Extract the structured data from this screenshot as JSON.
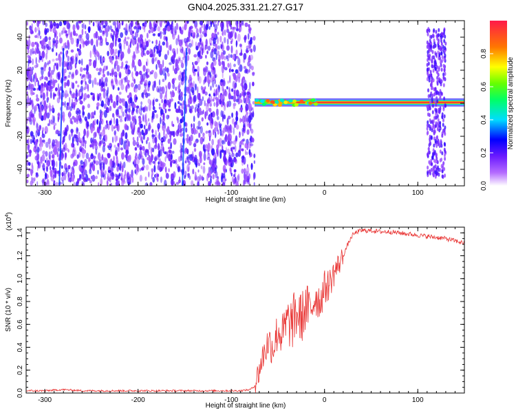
{
  "figure": {
    "title": "GN04.2025.331.21.27.G17"
  },
  "chart_data": [
    {
      "type": "heatmap",
      "title": "GN04.2025.331.21.27.G17",
      "xlabel": "Height of straight line (km)",
      "ylabel": "Frequency (Hz)",
      "xlim": [
        -320,
        150
      ],
      "ylim": [
        -50,
        50
      ],
      "x_ticks": [
        "-300",
        "-200",
        "-100",
        "0",
        "100"
      ],
      "y_ticks": [
        "40",
        "20",
        "0",
        "-20",
        "-40"
      ],
      "colorbar": {
        "label": "Normalized spectral amplitude",
        "range": [
          0.0,
          1.0
        ],
        "ticks": [
          "0.0",
          "0.2",
          "0.4",
          "0.6",
          "0.8"
        ]
      },
      "features": [
        {
          "region": "noise",
          "x_range": [
            -320,
            -75
          ],
          "y_range": [
            -50,
            50
          ],
          "amplitude": 0.2
        },
        {
          "region": "tone",
          "x_range": [
            -75,
            150
          ],
          "frequency": 0.5,
          "amplitude": 0.95
        },
        {
          "region": "burst",
          "x_range": [
            110,
            130
          ],
          "y_range": [
            -45,
            45
          ],
          "amplitude": 0.2
        }
      ]
    },
    {
      "type": "line",
      "xlabel": "Height of straight line (km)",
      "ylabel": "SNR (10 * v/v)",
      "yscale_label": "(x10",
      "yscale_exp": "4",
      "yscale_close": ")",
      "xlim": [
        -320,
        150
      ],
      "ylim": [
        0.0,
        1.45
      ],
      "x_ticks": [
        "-300",
        "-200",
        "-100",
        "0",
        "100"
      ],
      "y_ticks": [
        "0.0",
        "0.2",
        "0.4",
        "0.6",
        "0.8",
        "1.0",
        "1.2",
        "1.4"
      ],
      "series": [
        {
          "color": "#e8302f",
          "x": [
            -320,
            -300,
            -280,
            -260,
            -240,
            -220,
            -200,
            -180,
            -160,
            -140,
            -120,
            -100,
            -90,
            -80,
            -75,
            -70,
            -65,
            -60,
            -55,
            -50,
            -45,
            -40,
            -35,
            -30,
            -25,
            -20,
            -15,
            -10,
            -5,
            0,
            5,
            10,
            15,
            20,
            25,
            30,
            35,
            40,
            50,
            60,
            70,
            80,
            90,
            100,
            110,
            120,
            130,
            140,
            150
          ],
          "y": [
            0.02,
            0.02,
            0.03,
            0.02,
            0.02,
            0.02,
            0.02,
            0.02,
            0.02,
            0.02,
            0.02,
            0.02,
            0.02,
            0.03,
            0.06,
            0.2,
            0.35,
            0.45,
            0.4,
            0.55,
            0.5,
            0.62,
            0.6,
            0.7,
            0.65,
            0.75,
            0.72,
            0.85,
            0.8,
            0.92,
            0.95,
            1.05,
            1.12,
            1.2,
            1.3,
            1.38,
            1.41,
            1.42,
            1.42,
            1.41,
            1.41,
            1.4,
            1.39,
            1.38,
            1.37,
            1.36,
            1.35,
            1.33,
            1.31
          ]
        }
      ]
    }
  ]
}
